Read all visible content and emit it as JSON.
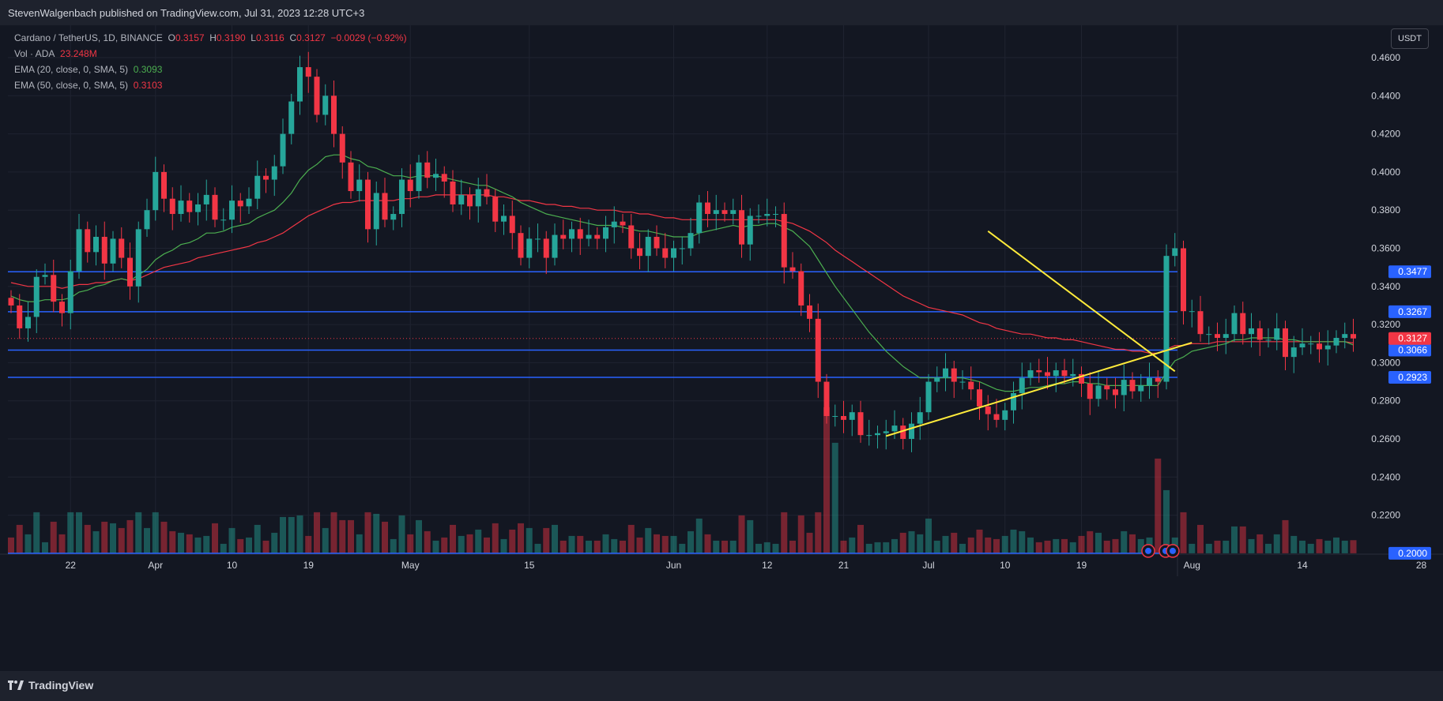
{
  "publisher_line": "StevenWalgenbach published on TradingView.com, Jul 31, 2023 12:28 UTC+3",
  "footer_brand": "TradingView",
  "currency_button": "USDT",
  "legend": {
    "symbol": "Cardano / TetherUS, 1D, BINANCE",
    "o_label": "O",
    "o_value": "0.3157",
    "h_label": "H",
    "h_value": "0.3190",
    "l_label": "L",
    "l_value": "0.3116",
    "c_label": "C",
    "c_value": "0.3127",
    "change": "−0.0029 (−0.92%)",
    "vol_label": "Vol · ADA",
    "vol_value": "23.248M",
    "ema20_label": "EMA (20, close, 0, SMA, 5)",
    "ema20_value": "0.3093",
    "ema50_label": "EMA (50, close, 0, SMA, 5)",
    "ema50_value": "0.3103"
  },
  "colors": {
    "up": "#26a69a",
    "down": "#f23645",
    "ema20": "#4caf50",
    "ema50": "#f23645",
    "hline": "#2962ff",
    "trendline": "#ffeb3b",
    "grid": "#1f2330",
    "axis_text": "#d1d4dc",
    "bg": "#131722"
  },
  "chart_data": {
    "type": "candlestick",
    "y_ticks": [
      "0.4600",
      "0.4400",
      "0.4200",
      "0.4000",
      "0.3800",
      "0.3600",
      "0.3400",
      "0.3200",
      "0.3000",
      "0.2800",
      "0.2600",
      "0.2400",
      "0.2200"
    ],
    "x_ticks": [
      {
        "label": "22",
        "date": "2023-03-22"
      },
      {
        "label": "Apr",
        "date": "2023-04-01"
      },
      {
        "label": "10",
        "date": "2023-04-10"
      },
      {
        "label": "19",
        "date": "2023-04-19"
      },
      {
        "label": "May",
        "date": "2023-05-01"
      },
      {
        "label": "15",
        "date": "2023-05-15"
      },
      {
        "label": "Jun",
        "date": "2023-06-01"
      },
      {
        "label": "12",
        "date": "2023-06-12"
      },
      {
        "label": "21",
        "date": "2023-06-21"
      },
      {
        "label": "Jul",
        "date": "2023-07-01"
      },
      {
        "label": "10",
        "date": "2023-07-10"
      },
      {
        "label": "19",
        "date": "2023-07-19"
      },
      {
        "label": "Aug",
        "date": "2023-08-01"
      },
      {
        "label": "14",
        "date": "2023-08-14"
      },
      {
        "label": "28",
        "date": "2023-08-28"
      }
    ],
    "y_range": [
      0.2,
      0.47
    ],
    "first_candle_date": "2023-03-15",
    "close": [
      0.33,
      0.318,
      0.324,
      0.345,
      0.346,
      0.332,
      0.326,
      0.348,
      0.37,
      0.358,
      0.366,
      0.352,
      0.365,
      0.355,
      0.34,
      0.37,
      0.38,
      0.4,
      0.386,
      0.378,
      0.385,
      0.379,
      0.383,
      0.388,
      0.375,
      0.375,
      0.385,
      0.382,
      0.386,
      0.398,
      0.396,
      0.403,
      0.42,
      0.437,
      0.455,
      0.45,
      0.43,
      0.44,
      0.42,
      0.405,
      0.39,
      0.396,
      0.37,
      0.389,
      0.375,
      0.378,
      0.396,
      0.39,
      0.405,
      0.397,
      0.399,
      0.395,
      0.383,
      0.388,
      0.382,
      0.391,
      0.387,
      0.374,
      0.377,
      0.368,
      0.355,
      0.365,
      0.365,
      0.355,
      0.367,
      0.365,
      0.37,
      0.365,
      0.367,
      0.365,
      0.371,
      0.374,
      0.372,
      0.36,
      0.356,
      0.366,
      0.36,
      0.355,
      0.36,
      0.36,
      0.368,
      0.384,
      0.378,
      0.38,
      0.378,
      0.38,
      0.362,
      0.377,
      0.377,
      0.378,
      0.378,
      0.35,
      0.348,
      0.33,
      0.323,
      0.29,
      0.272,
      0.272,
      0.27,
      0.274,
      0.262,
      0.262,
      0.263,
      0.264,
      0.267,
      0.26,
      0.268,
      0.274,
      0.29,
      0.292,
      0.297,
      0.29,
      0.29,
      0.286,
      0.277,
      0.273,
      0.27,
      0.275,
      0.284,
      0.292,
      0.296,
      0.295,
      0.293,
      0.296,
      0.293,
      0.294,
      0.289,
      0.281,
      0.288,
      0.286,
      0.283,
      0.291,
      0.285,
      0.288,
      0.292,
      0.29,
      0.356,
      0.36,
      0.327,
      0.327,
      0.315,
      0.315,
      0.313,
      0.315,
      0.326,
      0.315,
      0.318,
      0.312,
      0.312,
      0.318,
      0.303,
      0.308,
      0.31,
      0.31,
      0.307,
      0.309,
      0.313,
      0.315,
      0.3127
    ],
    "ema20": [
      0.335,
      0.333,
      0.332,
      0.332,
      0.333,
      0.333,
      0.333,
      0.334,
      0.337,
      0.338,
      0.34,
      0.341,
      0.343,
      0.344,
      0.343,
      0.346,
      0.349,
      0.354,
      0.357,
      0.359,
      0.362,
      0.363,
      0.365,
      0.368,
      0.368,
      0.369,
      0.371,
      0.372,
      0.373,
      0.376,
      0.378,
      0.38,
      0.384,
      0.389,
      0.396,
      0.401,
      0.404,
      0.408,
      0.409,
      0.409,
      0.407,
      0.406,
      0.403,
      0.402,
      0.4,
      0.398,
      0.398,
      0.397,
      0.398,
      0.398,
      0.398,
      0.397,
      0.396,
      0.395,
      0.394,
      0.393,
      0.393,
      0.391,
      0.389,
      0.387,
      0.384,
      0.382,
      0.38,
      0.378,
      0.377,
      0.376,
      0.375,
      0.374,
      0.373,
      0.372,
      0.372,
      0.372,
      0.371,
      0.37,
      0.369,
      0.369,
      0.368,
      0.367,
      0.366,
      0.366,
      0.366,
      0.368,
      0.369,
      0.37,
      0.371,
      0.372,
      0.371,
      0.372,
      0.372,
      0.373,
      0.373,
      0.371,
      0.369,
      0.365,
      0.361,
      0.354,
      0.347,
      0.34,
      0.334,
      0.328,
      0.322,
      0.316,
      0.311,
      0.306,
      0.302,
      0.298,
      0.295,
      0.292,
      0.292,
      0.292,
      0.292,
      0.292,
      0.292,
      0.291,
      0.29,
      0.288,
      0.286,
      0.285,
      0.285,
      0.286,
      0.287,
      0.287,
      0.288,
      0.289,
      0.289,
      0.29,
      0.29,
      0.289,
      0.289,
      0.288,
      0.288,
      0.288,
      0.288,
      0.288,
      0.288,
      0.288,
      0.295,
      0.301,
      0.303,
      0.306,
      0.307,
      0.308,
      0.309,
      0.31,
      0.312,
      0.312,
      0.313,
      0.313,
      0.313,
      0.313,
      0.312,
      0.312,
      0.311,
      0.311,
      0.311,
      0.311,
      0.311,
      0.311,
      0.3093
    ],
    "ema50": [
      0.342,
      0.341,
      0.34,
      0.34,
      0.34,
      0.34,
      0.339,
      0.34,
      0.341,
      0.341,
      0.342,
      0.342,
      0.343,
      0.344,
      0.343,
      0.344,
      0.346,
      0.348,
      0.35,
      0.351,
      0.352,
      0.353,
      0.355,
      0.356,
      0.357,
      0.358,
      0.359,
      0.36,
      0.361,
      0.363,
      0.364,
      0.366,
      0.368,
      0.371,
      0.374,
      0.377,
      0.379,
      0.381,
      0.383,
      0.384,
      0.384,
      0.385,
      0.385,
      0.385,
      0.385,
      0.385,
      0.386,
      0.386,
      0.387,
      0.387,
      0.388,
      0.388,
      0.388,
      0.388,
      0.388,
      0.388,
      0.388,
      0.387,
      0.387,
      0.386,
      0.385,
      0.385,
      0.384,
      0.383,
      0.383,
      0.382,
      0.382,
      0.381,
      0.381,
      0.38,
      0.38,
      0.38,
      0.379,
      0.379,
      0.378,
      0.378,
      0.377,
      0.376,
      0.376,
      0.375,
      0.375,
      0.375,
      0.375,
      0.375,
      0.375,
      0.375,
      0.375,
      0.375,
      0.375,
      0.375,
      0.375,
      0.374,
      0.373,
      0.371,
      0.369,
      0.366,
      0.363,
      0.359,
      0.356,
      0.353,
      0.35,
      0.347,
      0.344,
      0.341,
      0.338,
      0.335,
      0.333,
      0.331,
      0.329,
      0.328,
      0.327,
      0.326,
      0.325,
      0.323,
      0.321,
      0.32,
      0.318,
      0.317,
      0.316,
      0.315,
      0.315,
      0.314,
      0.313,
      0.313,
      0.312,
      0.312,
      0.311,
      0.31,
      0.309,
      0.308,
      0.307,
      0.307,
      0.306,
      0.306,
      0.305,
      0.305,
      0.307,
      0.309,
      0.309,
      0.31,
      0.31,
      0.31,
      0.311,
      0.311,
      0.311,
      0.311,
      0.311,
      0.311,
      0.311,
      0.311,
      0.311,
      0.311,
      0.311,
      0.311,
      0.311,
      0.311,
      0.311,
      0.311,
      0.3103
    ],
    "volume_note": "volume bars at bottom, colored by candle direction",
    "horizontal_levels": [
      {
        "value": 0.3477,
        "label": "0.3477"
      },
      {
        "value": 0.3267,
        "label": "0.3267"
      },
      {
        "value": 0.3066,
        "label": "0.3066"
      },
      {
        "value": 0.2923,
        "label": "0.2923"
      },
      {
        "value": 0.2,
        "label": "0.2000"
      }
    ],
    "last_price": {
      "value": 0.3127,
      "label": "0.3127"
    },
    "trendlines": [
      {
        "from": {
          "date": "2023-06-26",
          "price": 0.2615
        },
        "to": {
          "date": "2023-08-01",
          "price": 0.3105
        }
      },
      {
        "from": {
          "date": "2023-07-08",
          "price": 0.369
        },
        "to": {
          "date": "2023-07-30",
          "price": 0.2955
        }
      }
    ]
  }
}
